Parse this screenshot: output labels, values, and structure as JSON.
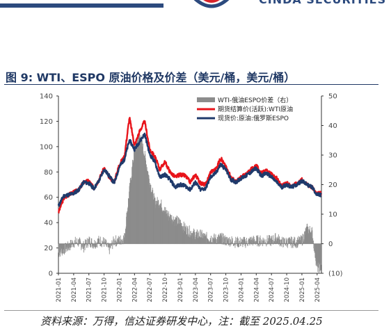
{
  "header": {
    "logo_text": "CINDA SECURITIES"
  },
  "figure": {
    "title": "图 9:  WTI、ESPO 原油价格及价差（美元/桶，美元/桶）",
    "source": "资料来源：万得，信达证券研发中心，注：截至 2025.04.25"
  },
  "colors": {
    "brand": "#2c4a7e",
    "wti": "#e8141b",
    "espo": "#1f3a6b",
    "spread": "#8c8c8c"
  },
  "chart_data": {
    "type": "line",
    "y_left": {
      "min": 0,
      "max": 140,
      "ticks": [
        0,
        20,
        40,
        60,
        80,
        100,
        120,
        140
      ]
    },
    "y_right": {
      "min": -10,
      "max": 50,
      "ticks": [
        -10,
        0,
        10,
        20,
        30,
        40,
        50
      ],
      "tick_labels": [
        "(10)",
        "0",
        "10",
        "20",
        "30",
        "40",
        "50"
      ]
    },
    "x_ticks": [
      "2021-01",
      "2021-04",
      "2021-07",
      "2021-10",
      "2022-01",
      "2022-04",
      "2022-07",
      "2022-10",
      "2023-01",
      "2023-04",
      "2023-07",
      "2023-10",
      "2024-01",
      "2024-04",
      "2024-07",
      "2024-10",
      "2025-01",
      "2025-04"
    ],
    "legend": [
      {
        "name": "WTI-俄油ESPO价差（右）",
        "kind": "bar",
        "color": "#8c8c8c"
      },
      {
        "name": "期货结算价(活跃):WTI原油",
        "kind": "line",
        "color": "#e8141b"
      },
      {
        "name": "现货价:原油:俄罗斯ESPO",
        "kind": "line",
        "color": "#1f3a6b"
      }
    ],
    "legend_position": "top-right",
    "grid": false,
    "series": [
      {
        "name": "期货结算价(活跃):WTI原油",
        "axis": "left",
        "points": [
          [
            "2021-01",
            48
          ],
          [
            "2021-02",
            59
          ],
          [
            "2021-03",
            62
          ],
          [
            "2021-04",
            64
          ],
          [
            "2021-05",
            66
          ],
          [
            "2021-06",
            72
          ],
          [
            "2021-07",
            73
          ],
          [
            "2021-08",
            67
          ],
          [
            "2021-09",
            74
          ],
          [
            "2021-10",
            83
          ],
          [
            "2021-11",
            76
          ],
          [
            "2021-12",
            72
          ],
          [
            "2022-01",
            86
          ],
          [
            "2022-02",
            92
          ],
          [
            "2022-03",
            123
          ],
          [
            "2022-04",
            101
          ],
          [
            "2022-05",
            112
          ],
          [
            "2022-06",
            120
          ],
          [
            "2022-07",
            98
          ],
          [
            "2022-08",
            92
          ],
          [
            "2022-09",
            82
          ],
          [
            "2022-10",
            88
          ],
          [
            "2022-11",
            80
          ],
          [
            "2022-12",
            76
          ],
          [
            "2023-01",
            78
          ],
          [
            "2023-02",
            77
          ],
          [
            "2023-03",
            72
          ],
          [
            "2023-04",
            78
          ],
          [
            "2023-05",
            71
          ],
          [
            "2023-06",
            70
          ],
          [
            "2023-07",
            80
          ],
          [
            "2023-08",
            82
          ],
          [
            "2023-09",
            91
          ],
          [
            "2023-10",
            84
          ],
          [
            "2023-11",
            76
          ],
          [
            "2023-12",
            72
          ],
          [
            "2024-01",
            76
          ],
          [
            "2024-02",
            78
          ],
          [
            "2024-03",
            82
          ],
          [
            "2024-04",
            85
          ],
          [
            "2024-05",
            79
          ],
          [
            "2024-06",
            81
          ],
          [
            "2024-07",
            78
          ],
          [
            "2024-08",
            75
          ],
          [
            "2024-09",
            69
          ],
          [
            "2024-10",
            71
          ],
          [
            "2024-11",
            69
          ],
          [
            "2024-12",
            71
          ],
          [
            "2025-01",
            74
          ],
          [
            "2025-02",
            70
          ],
          [
            "2025-03",
            68
          ],
          [
            "2025-04",
            63
          ]
        ]
      },
      {
        "name": "现货价:原油:俄罗斯ESPO",
        "axis": "left",
        "points": [
          [
            "2021-01",
            53
          ],
          [
            "2021-02",
            61
          ],
          [
            "2021-03",
            62
          ],
          [
            "2021-04",
            63
          ],
          [
            "2021-05",
            66
          ],
          [
            "2021-06",
            72
          ],
          [
            "2021-07",
            71
          ],
          [
            "2021-08",
            67
          ],
          [
            "2021-09",
            73
          ],
          [
            "2021-10",
            82
          ],
          [
            "2021-11",
            77
          ],
          [
            "2021-12",
            71
          ],
          [
            "2022-01",
            84
          ],
          [
            "2022-02",
            90
          ],
          [
            "2022-03",
            105
          ],
          [
            "2022-04",
            98
          ],
          [
            "2022-05",
            104
          ],
          [
            "2022-06",
            110
          ],
          [
            "2022-07",
            94
          ],
          [
            "2022-08",
            88
          ],
          [
            "2022-09",
            76
          ],
          [
            "2022-10",
            78
          ],
          [
            "2022-11",
            74
          ],
          [
            "2022-12",
            68
          ],
          [
            "2023-01",
            70
          ],
          [
            "2023-02",
            69
          ],
          [
            "2023-03",
            66
          ],
          [
            "2023-04",
            72
          ],
          [
            "2023-05",
            66
          ],
          [
            "2023-06",
            67
          ],
          [
            "2023-07",
            76
          ],
          [
            "2023-08",
            79
          ],
          [
            "2023-09",
            86
          ],
          [
            "2023-10",
            82
          ],
          [
            "2023-11",
            74
          ],
          [
            "2023-12",
            72
          ],
          [
            "2024-01",
            75
          ],
          [
            "2024-02",
            77
          ],
          [
            "2024-03",
            80
          ],
          [
            "2024-04",
            83
          ],
          [
            "2024-05",
            77
          ],
          [
            "2024-06",
            79
          ],
          [
            "2024-07",
            76
          ],
          [
            "2024-08",
            72
          ],
          [
            "2024-09",
            68
          ],
          [
            "2024-10",
            70
          ],
          [
            "2024-11",
            68
          ],
          [
            "2024-12",
            70
          ],
          [
            "2025-01",
            73
          ],
          [
            "2025-02",
            70
          ],
          [
            "2025-03",
            68
          ],
          [
            "2025-04",
            62
          ]
        ]
      },
      {
        "name": "WTI-俄油ESPO价差（右）",
        "axis": "right",
        "points": [
          [
            "2021-01",
            -3
          ],
          [
            "2021-02",
            -2
          ],
          [
            "2021-03",
            -1
          ],
          [
            "2021-04",
            0.5
          ],
          [
            "2021-05",
            0.5
          ],
          [
            "2021-06",
            -1
          ],
          [
            "2021-07",
            1
          ],
          [
            "2021-08",
            0
          ],
          [
            "2021-09",
            1
          ],
          [
            "2021-10",
            0.5
          ],
          [
            "2021-11",
            -2
          ],
          [
            "2021-12",
            1
          ],
          [
            "2022-01",
            1
          ],
          [
            "2022-02",
            2
          ],
          [
            "2022-03",
            18
          ],
          [
            "2022-04",
            32
          ],
          [
            "2022-05",
            37
          ],
          [
            "2022-06",
            30
          ],
          [
            "2022-07",
            21
          ],
          [
            "2022-08",
            14
          ],
          [
            "2022-09",
            14
          ],
          [
            "2022-10",
            11
          ],
          [
            "2022-11",
            9
          ],
          [
            "2022-12",
            8
          ],
          [
            "2023-01",
            7
          ],
          [
            "2023-02",
            5
          ],
          [
            "2023-03",
            4
          ],
          [
            "2023-04",
            3
          ],
          [
            "2023-05",
            3
          ],
          [
            "2023-06",
            2
          ],
          [
            "2023-07",
            2
          ],
          [
            "2023-08",
            1.5
          ],
          [
            "2023-09",
            2
          ],
          [
            "2023-10",
            1
          ],
          [
            "2023-11",
            1
          ],
          [
            "2023-12",
            0.5
          ],
          [
            "2024-01",
            0.5
          ],
          [
            "2024-02",
            0.5
          ],
          [
            "2024-03",
            1
          ],
          [
            "2024-04",
            1
          ],
          [
            "2024-05",
            1
          ],
          [
            "2024-06",
            1
          ],
          [
            "2024-07",
            1
          ],
          [
            "2024-08",
            2
          ],
          [
            "2024-09",
            0.5
          ],
          [
            "2024-10",
            0.5
          ],
          [
            "2024-11",
            0.5
          ],
          [
            "2024-12",
            0.5
          ],
          [
            "2025-01",
            1
          ],
          [
            "2025-02",
            5
          ],
          [
            "2025-03",
            4
          ],
          [
            "2025-04",
            -8
          ]
        ]
      }
    ]
  }
}
